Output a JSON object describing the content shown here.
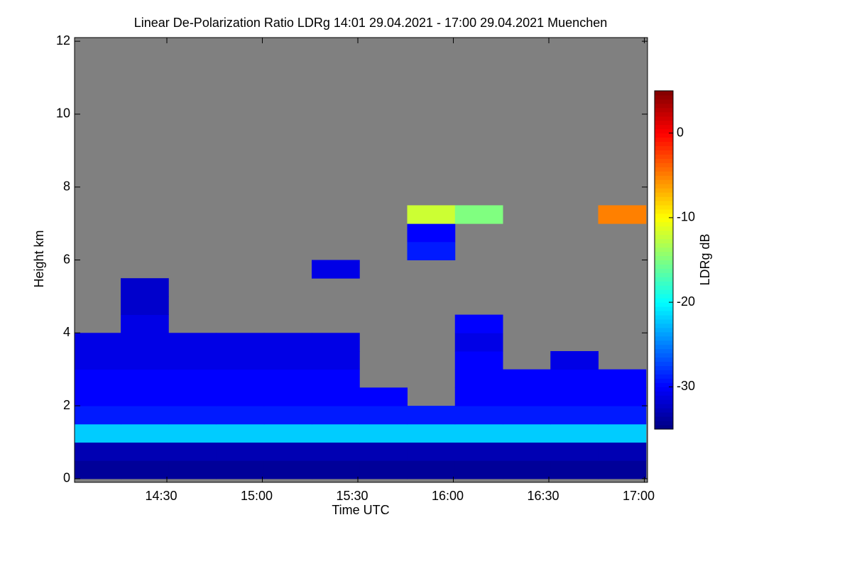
{
  "chart_data": {
    "type": "heatmap",
    "title": "Linear De-Polarization Ratio LDRg   14:01 29.04.2021 - 17:00 29.04.2021 Muenchen",
    "x_label": "Time UTC",
    "y_label": "Height km",
    "xlim": [
      841,
      1021
    ],
    "ylim": [
      -0.1,
      12.1
    ],
    "xticks": [
      {
        "value": 870,
        "label": "14:30"
      },
      {
        "value": 900,
        "label": "15:00"
      },
      {
        "value": 930,
        "label": "15:30"
      },
      {
        "value": 960,
        "label": "16:00"
      },
      {
        "value": 990,
        "label": "16:30"
      },
      {
        "value": 1020,
        "label": "17:00"
      }
    ],
    "yticks": [
      0,
      2,
      4,
      6,
      8,
      10,
      12
    ],
    "x": [
      848,
      863,
      878,
      893,
      908,
      923,
      938,
      953,
      968,
      983,
      998,
      1013
    ],
    "y": [
      0.25,
      0.75,
      1.25,
      1.75,
      2.25,
      2.75,
      3.25,
      3.75,
      4.25,
      4.75,
      5.25,
      5.75,
      6.25,
      6.75,
      7.25,
      7.75
    ],
    "z": [
      [
        -34,
        -34,
        -34,
        -34,
        -34,
        -34,
        -34,
        -34,
        -34,
        -34,
        -34,
        -34
      ],
      [
        -33,
        -33,
        -33,
        -33,
        -33,
        -33,
        -33,
        -33,
        -33,
        -33,
        -33,
        -33
      ],
      [
        -22,
        -22,
        -22,
        -22,
        -22,
        -22,
        -22,
        -22,
        -22,
        -22,
        -22,
        -22
      ],
      [
        -29,
        -29,
        -29,
        -29,
        -29,
        -29,
        -29,
        -29,
        -29,
        -29,
        -29,
        -29
      ],
      [
        -30,
        -30,
        -30,
        -30,
        -30,
        -30,
        -30,
        null,
        -30,
        -30,
        -30,
        -30
      ],
      [
        -30,
        -30,
        -30,
        -30,
        -30,
        -30,
        null,
        null,
        -30,
        -30,
        -30,
        -30
      ],
      [
        -31,
        -31,
        -31,
        -31,
        -31,
        -31,
        null,
        null,
        -30,
        null,
        -31,
        null
      ],
      [
        -31,
        -31,
        -31,
        -31,
        -31,
        -31,
        null,
        null,
        -31,
        null,
        null,
        null
      ],
      [
        null,
        -31,
        null,
        null,
        null,
        null,
        null,
        null,
        -30,
        null,
        null,
        null
      ],
      [
        null,
        -32,
        null,
        null,
        null,
        null,
        null,
        null,
        null,
        null,
        null,
        null
      ],
      [
        null,
        -32,
        null,
        null,
        null,
        null,
        null,
        null,
        null,
        null,
        null,
        null
      ],
      [
        null,
        null,
        null,
        null,
        null,
        -31,
        null,
        null,
        null,
        null,
        null,
        null
      ],
      [
        null,
        null,
        null,
        null,
        null,
        null,
        null,
        -29,
        null,
        null,
        null,
        null
      ],
      [
        null,
        null,
        null,
        null,
        null,
        null,
        null,
        -30,
        null,
        null,
        null,
        null
      ],
      [
        null,
        null,
        null,
        null,
        null,
        null,
        null,
        -12,
        -15,
        null,
        null,
        -5
      ],
      [
        null,
        null,
        null,
        null,
        null,
        null,
        null,
        null,
        null,
        null,
        null,
        null
      ]
    ],
    "colormap": "jet",
    "missing_color": "#808080",
    "colorbar": {
      "label": "LDRg dB",
      "lim": [
        -35,
        5
      ],
      "ticks": [
        0,
        -10,
        -20,
        -30
      ]
    }
  }
}
